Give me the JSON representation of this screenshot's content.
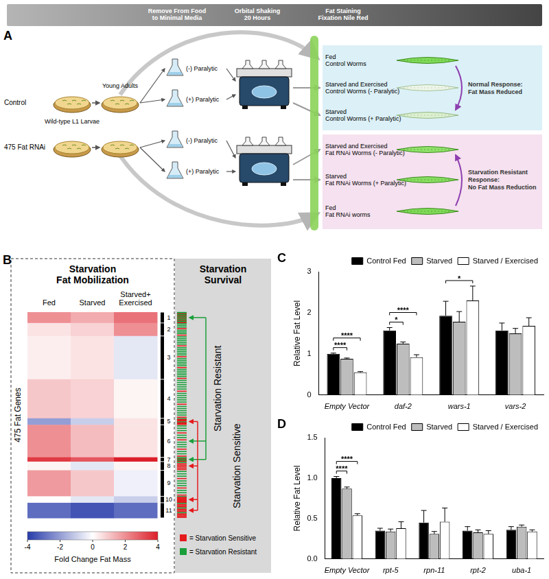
{
  "panel_a": {
    "label": "A",
    "timeline": [
      "Remove From Food\nto Minimal Media",
      "Orbital Shaking\n20 Hours",
      "Fat Staining\nFixation Nile Red"
    ],
    "left": {
      "control": "Control",
      "rnai": "475 Fat RNAi",
      "larvae": "Wild-type L1 Larvae",
      "adults": "Young Adults"
    },
    "flasks": [
      "(-) Paralytic",
      "(+) Paralytic",
      "(-) Paralytic",
      "(+) Paralytic"
    ],
    "control_box": {
      "rows": [
        "Fed\nControl Worms",
        "Starved and Exercised\nControl Worms (- Paralytic)",
        "Starved\nControl Worms (+ Paralytic)"
      ],
      "response": "Normal Response:\nFat Mass Reduced"
    },
    "rnai_box": {
      "rows": [
        "Starved and Exercised\nFat RNAi Worms (- Paralytic)",
        "Starved\nFat RNAi Worms (+ Paralytic)",
        "Fed\nFat RNAi worms"
      ],
      "response": "Starvation Resistant\nResponse:\nNo Fat Mass Reduction"
    }
  },
  "panel_b": {
    "label": "B",
    "title": "Starvation\nFat Mobilization",
    "columns": [
      "Fed",
      "Starved",
      "Starved+\nExercised"
    ],
    "row_label": "475 Fat Genes",
    "clusters": [
      {
        "id": 1,
        "genes": 25,
        "cells": [
          2,
          1.5,
          2.5
        ],
        "resistant": 10,
        "sensitive": 5
      },
      {
        "id": 2,
        "genes": 30,
        "cells": [
          0.5,
          0.8,
          2
        ],
        "resistant": 6,
        "sensitive": 2
      },
      {
        "id": 3,
        "genes": 100,
        "cells": [
          0.3,
          0.5,
          -0.5
        ],
        "resistant": 20,
        "sensitive": 4
      },
      {
        "id": 4,
        "genes": 90,
        "cells": [
          1,
          0.8,
          0.2
        ],
        "resistant": 15,
        "sensitive": 3
      },
      {
        "id": 5,
        "genes": 15,
        "cells": [
          -2,
          -1,
          0.5
        ],
        "resistant": 2,
        "sensitive": 6
      },
      {
        "id": 6,
        "genes": 75,
        "cells": [
          2,
          1.2,
          0.5
        ],
        "resistant": 10,
        "sensitive": 4
      },
      {
        "id": 7,
        "genes": 10,
        "cells": [
          3.5,
          3,
          4
        ],
        "resistant": 4,
        "sensitive": 2
      },
      {
        "id": 8,
        "genes": 20,
        "cells": [
          0.2,
          -0.5,
          0.2
        ],
        "resistant": 1,
        "sensitive": 5
      },
      {
        "id": 9,
        "genes": 60,
        "cells": [
          1.8,
          1,
          -0.3
        ],
        "resistant": 8,
        "sensitive": 3
      },
      {
        "id": 10,
        "genes": 15,
        "cells": [
          0,
          -0.5,
          -1
        ],
        "resistant": 1,
        "sensitive": 8
      },
      {
        "id": 11,
        "genes": 35,
        "cells": [
          -3,
          -3.5,
          -3
        ],
        "resistant": 3,
        "sensitive": 10
      }
    ],
    "colorbar": {
      "title": "Fold Change Fat Mass",
      "range": [
        -4,
        4
      ],
      "ticks": [
        -4,
        -2,
        0,
        2,
        4
      ]
    },
    "survival": {
      "title": "Starvation\nSurvival",
      "resistant_label": "Starvation Resistant",
      "sensitive_label": "Starvation Sensitive",
      "resistant_clusters": [
        1,
        6,
        7
      ],
      "sensitive_clusters": [
        5,
        8,
        10,
        11
      ],
      "keys": [
        {
          "color": "#e41a1c",
          "label": "= Starvation Sensitive"
        },
        {
          "color": "#1a9e3a",
          "label": "= Starvation Resistant"
        }
      ]
    }
  },
  "chart_data": [
    {
      "type": "bar",
      "panel": "C",
      "y_label": "Relative Fat Level",
      "categories": [
        "Empty Vector",
        "daf-2",
        "wars-1",
        "vars-2"
      ],
      "series": [
        {
          "name": "Control Fed",
          "color": "#000000",
          "values": [
            1.0,
            1.57,
            1.93,
            1.57
          ],
          "errors": [
            0.02,
            0.07,
            0.35,
            0.18
          ]
        },
        {
          "name": "Starved",
          "color": "#bdbdbd",
          "values": [
            0.88,
            1.25,
            1.78,
            1.5
          ],
          "errors": [
            0.02,
            0.04,
            0.25,
            0.12
          ]
        },
        {
          "name": "Starved / Exercised",
          "color": "#ffffff",
          "values": [
            0.55,
            0.92,
            2.3,
            1.68
          ],
          "errors": [
            0.02,
            0.06,
            0.35,
            0.2
          ]
        }
      ],
      "annotations": [
        {
          "category": "Empty Vector",
          "from": "Control Fed",
          "to": "Starved",
          "label": "****"
        },
        {
          "category": "Empty Vector",
          "from": "Control Fed",
          "to": "Starved / Exercised",
          "label": "****"
        },
        {
          "category": "daf-2",
          "from": "Control Fed",
          "to": "Starved",
          "label": "*"
        },
        {
          "category": "daf-2",
          "from": "Control Fed",
          "to": "Starved / Exercised",
          "label": "****"
        },
        {
          "category": "wars-1",
          "from": "Control Fed",
          "to": "Starved / Exercised",
          "label": "*"
        }
      ],
      "ylim": [
        0,
        3
      ],
      "yticks": [
        0,
        1,
        2,
        3
      ],
      "grid": false,
      "legend": "top-right"
    },
    {
      "type": "bar",
      "panel": "D",
      "y_label": "Relative Fat Level",
      "categories": [
        "Empty Vector",
        "rpt-5",
        "rpn-11",
        "rpt-2",
        "uba-1"
      ],
      "series": [
        {
          "name": "Control Fed",
          "color": "#000000",
          "values": [
            1.0,
            0.35,
            0.45,
            0.35,
            0.36
          ],
          "errors": [
            0.02,
            0.03,
            0.15,
            0.05,
            0.04
          ]
        },
        {
          "name": "Starved",
          "color": "#bdbdbd",
          "values": [
            0.87,
            0.34,
            0.31,
            0.33,
            0.4
          ],
          "errors": [
            0.02,
            0.03,
            0.03,
            0.03,
            0.02
          ]
        },
        {
          "name": "Starved / Exercised",
          "color": "#ffffff",
          "values": [
            0.54,
            0.38,
            0.46,
            0.31,
            0.34
          ],
          "errors": [
            0.02,
            0.08,
            0.17,
            0.04,
            0.02
          ]
        }
      ],
      "annotations": [
        {
          "category": "Empty Vector",
          "from": "Control Fed",
          "to": "Starved",
          "label": "****"
        },
        {
          "category": "Empty Vector",
          "from": "Control Fed",
          "to": "Starved / Exercised",
          "label": "****"
        }
      ],
      "ylim": [
        0,
        1.5
      ],
      "yticks": [
        {
          "value": 0,
          "label": "0.0"
        },
        0.5,
        {
          "value": 1,
          "label": "1.0"
        },
        1.5
      ],
      "grid": false,
      "legend": "top-right"
    }
  ]
}
